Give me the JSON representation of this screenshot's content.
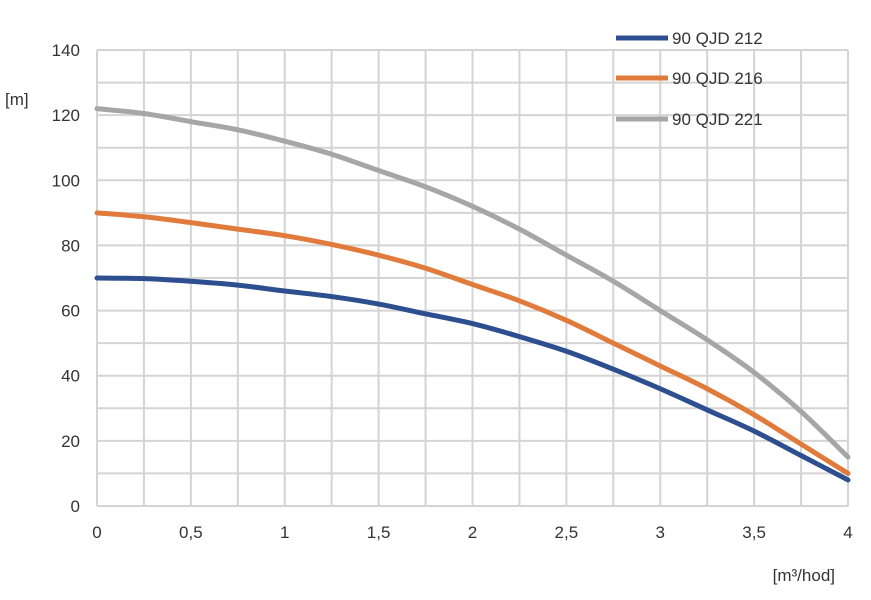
{
  "chart_data": {
    "type": "line",
    "title": "",
    "xlabel": "[m³/hod]",
    "ylabel": "[m]",
    "xlim": [
      0,
      4
    ],
    "ylim": [
      0,
      140
    ],
    "grid": true,
    "legend_position": "top-right",
    "x_ticks": [
      "0",
      "0,5",
      "1",
      "1,5",
      "2",
      "2,5",
      "3",
      "3,5",
      "4"
    ],
    "y_ticks": [
      "0",
      "20",
      "40",
      "60",
      "80",
      "100",
      "120",
      "140"
    ],
    "series": [
      {
        "name": "90 QJD 212",
        "color": "#2e4f8f",
        "x": [
          0,
          0.25,
          0.5,
          0.75,
          1,
          1.25,
          1.5,
          1.75,
          2,
          2.25,
          2.5,
          2.75,
          3,
          3.25,
          3.5,
          3.75,
          4
        ],
        "y": [
          70,
          69.8,
          69,
          67.8,
          66,
          64.3,
          62,
          59,
          56,
          52,
          47.5,
          42,
          36,
          29.5,
          23,
          15.5,
          8
        ]
      },
      {
        "name": "90 QJD 216",
        "color": "#e07b3c",
        "x": [
          0,
          0.25,
          0.5,
          0.75,
          1,
          1.25,
          1.5,
          1.75,
          2,
          2.25,
          2.5,
          2.75,
          3,
          3.25,
          3.5,
          3.75,
          4
        ],
        "y": [
          90,
          88.8,
          87,
          85,
          83,
          80.3,
          77,
          73,
          68,
          63,
          57,
          50,
          43,
          36,
          28,
          19,
          10
        ]
      },
      {
        "name": "90 QJD 221",
        "color": "#a6a6a6",
        "x": [
          0,
          0.25,
          0.5,
          0.75,
          1,
          1.25,
          1.5,
          1.75,
          2,
          2.25,
          2.5,
          2.75,
          3,
          3.25,
          3.5,
          3.75,
          4
        ],
        "y": [
          122,
          120.5,
          118,
          115.5,
          112,
          108,
          103,
          98,
          92,
          85,
          77,
          69,
          60,
          51,
          41,
          29,
          15
        ]
      }
    ]
  }
}
